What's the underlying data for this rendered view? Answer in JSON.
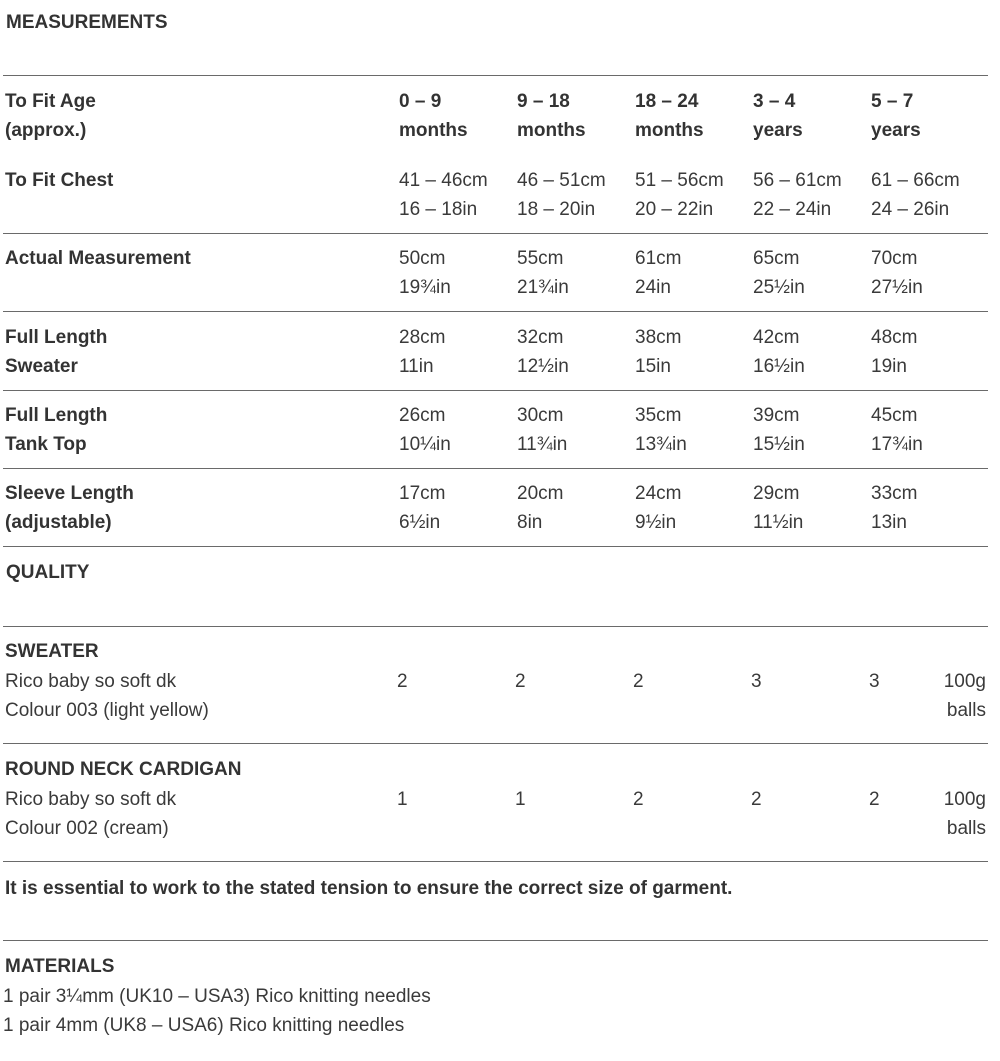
{
  "measurements": {
    "heading": "MEASUREMENTS",
    "rows": [
      {
        "label": [
          "To Fit Age",
          "(approx.)"
        ],
        "bold_values": true,
        "values": [
          [
            "0 – 9",
            "months"
          ],
          [
            "9 – 18",
            "months"
          ],
          [
            "18 – 24",
            "months"
          ],
          [
            "3 – 4",
            "years"
          ],
          [
            "5 – 7",
            "years"
          ]
        ]
      },
      {
        "label": [
          "To Fit Chest"
        ],
        "values": [
          [
            "41 – 46cm",
            "16 – 18in"
          ],
          [
            "46 – 51cm",
            "18 – 20in"
          ],
          [
            "51 – 56cm",
            "20 – 22in"
          ],
          [
            "56 – 61cm",
            "22 – 24in"
          ],
          [
            "61 – 66cm",
            "24 – 26in"
          ]
        ]
      },
      {
        "label": [
          "Actual Measurement"
        ],
        "values": [
          [
            "50cm",
            "19¾in"
          ],
          [
            "55cm",
            "21¾in"
          ],
          [
            "61cm",
            "24in"
          ],
          [
            "65cm",
            "25½in"
          ],
          [
            "70cm",
            "27½in"
          ]
        ]
      },
      {
        "label": [
          "Full Length",
          "Sweater"
        ],
        "values": [
          [
            "28cm",
            "11in"
          ],
          [
            "32cm",
            "12½in"
          ],
          [
            "38cm",
            "15in"
          ],
          [
            "42cm",
            "16½in"
          ],
          [
            "48cm",
            "19in"
          ]
        ]
      },
      {
        "label": [
          "Full Length",
          "Tank Top"
        ],
        "values": [
          [
            "26cm",
            "10¼in"
          ],
          [
            "30cm",
            "11¾in"
          ],
          [
            "35cm",
            "13¾in"
          ],
          [
            "39cm",
            "15½in"
          ],
          [
            "45cm",
            "17¾in"
          ]
        ]
      },
      {
        "label": [
          "Sleeve Length",
          "(adjustable)"
        ],
        "values": [
          [
            "17cm",
            "6½in"
          ],
          [
            "20cm",
            "8in"
          ],
          [
            "24cm",
            "9½in"
          ],
          [
            "29cm",
            "11½in"
          ],
          [
            "33cm",
            "13in"
          ]
        ]
      }
    ]
  },
  "quality": {
    "heading": "QUALITY",
    "items": [
      {
        "title": "SWEATER",
        "yarn": "Rico baby so soft dk",
        "colour": "Colour 003 (light yellow)",
        "balls": [
          "2",
          "2",
          "2",
          "3",
          "3"
        ],
        "unit": [
          "100g",
          "balls"
        ]
      },
      {
        "title": "ROUND NECK CARDIGAN",
        "yarn": "Rico baby so soft dk",
        "colour": "Colour 002 (cream)",
        "balls": [
          "1",
          "1",
          "2",
          "2",
          "2"
        ],
        "unit": [
          "100g",
          "balls"
        ]
      }
    ]
  },
  "note": "It is essential to work to the stated tension to ensure the correct size of garment.",
  "materials": {
    "heading": "MATERIALS",
    "items": [
      "1 pair 3¼mm (UK10 – USA3) Rico knitting needles",
      "1 pair 4mm (UK8 – USA6) Rico knitting needles"
    ]
  }
}
